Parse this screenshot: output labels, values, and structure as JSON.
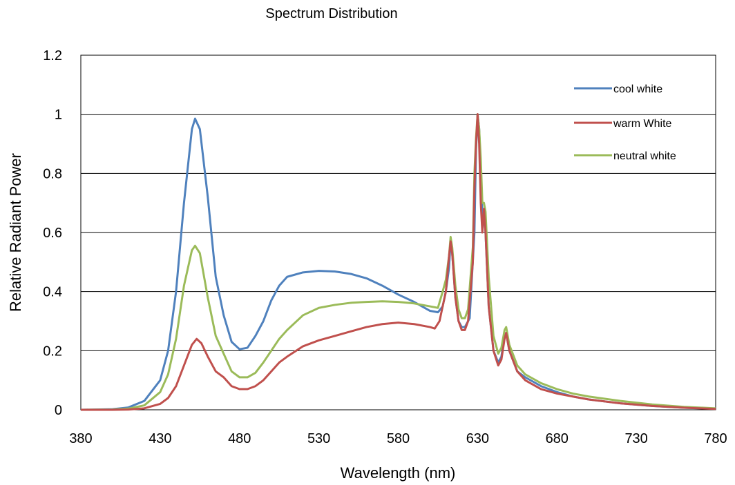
{
  "chart_data": {
    "type": "line",
    "title": "Spectrum Distribution",
    "xlabel": "Wavelength (nm)",
    "ylabel": "Relative Radiant Power",
    "xlim": [
      380,
      780
    ],
    "ylim": [
      0,
      1.2
    ],
    "x_ticks": [
      380,
      430,
      480,
      530,
      580,
      630,
      680,
      730,
      780
    ],
    "y_ticks": [
      0,
      0.2,
      0.4,
      0.6,
      0.8,
      1,
      1.2
    ],
    "x_tick_labels": [
      "380",
      "430",
      "480",
      "530",
      "580",
      "630",
      "680",
      "730",
      "780"
    ],
    "y_tick_labels": [
      "0",
      "0.2",
      "0.4",
      "0.6",
      "0.8",
      "1",
      "1.2"
    ],
    "grid": "horizontal",
    "legend_position": "top-right",
    "series": [
      {
        "name": "cool white",
        "color": "#4f81bd",
        "points": [
          [
            380,
            0
          ],
          [
            400,
            0.002
          ],
          [
            410,
            0.008
          ],
          [
            420,
            0.03
          ],
          [
            430,
            0.1
          ],
          [
            435,
            0.2
          ],
          [
            440,
            0.4
          ],
          [
            445,
            0.7
          ],
          [
            450,
            0.95
          ],
          [
            452,
            0.985
          ],
          [
            455,
            0.95
          ],
          [
            460,
            0.72
          ],
          [
            465,
            0.45
          ],
          [
            470,
            0.32
          ],
          [
            475,
            0.23
          ],
          [
            480,
            0.205
          ],
          [
            485,
            0.21
          ],
          [
            490,
            0.25
          ],
          [
            495,
            0.3
          ],
          [
            500,
            0.37
          ],
          [
            505,
            0.42
          ],
          [
            510,
            0.45
          ],
          [
            520,
            0.465
          ],
          [
            530,
            0.47
          ],
          [
            540,
            0.468
          ],
          [
            550,
            0.46
          ],
          [
            560,
            0.445
          ],
          [
            570,
            0.42
          ],
          [
            580,
            0.39
          ],
          [
            590,
            0.365
          ],
          [
            600,
            0.335
          ],
          [
            605,
            0.33
          ],
          [
            608,
            0.35
          ],
          [
            610,
            0.4
          ],
          [
            612,
            0.48
          ],
          [
            613,
            0.57
          ],
          [
            614,
            0.53
          ],
          [
            616,
            0.38
          ],
          [
            618,
            0.3
          ],
          [
            620,
            0.28
          ],
          [
            622,
            0.28
          ],
          [
            625,
            0.31
          ],
          [
            628,
            0.6
          ],
          [
            629,
            0.88
          ],
          [
            630,
            1.0
          ],
          [
            631,
            0.95
          ],
          [
            632,
            0.8
          ],
          [
            633,
            0.66
          ],
          [
            634,
            0.67
          ],
          [
            635,
            0.6
          ],
          [
            637,
            0.35
          ],
          [
            640,
            0.2
          ],
          [
            643,
            0.16
          ],
          [
            645,
            0.18
          ],
          [
            647,
            0.25
          ],
          [
            648,
            0.26
          ],
          [
            650,
            0.2
          ],
          [
            655,
            0.13
          ],
          [
            660,
            0.11
          ],
          [
            670,
            0.08
          ],
          [
            680,
            0.06
          ],
          [
            690,
            0.045
          ],
          [
            700,
            0.035
          ],
          [
            720,
            0.022
          ],
          [
            740,
            0.013
          ],
          [
            760,
            0.007
          ],
          [
            780,
            0.004
          ]
        ]
      },
      {
        "name": " warm White",
        "color": "#c0504d",
        "points": [
          [
            380,
            0
          ],
          [
            400,
            0
          ],
          [
            410,
            0.001
          ],
          [
            420,
            0.005
          ],
          [
            430,
            0.02
          ],
          [
            435,
            0.04
          ],
          [
            440,
            0.08
          ],
          [
            445,
            0.15
          ],
          [
            450,
            0.22
          ],
          [
            453,
            0.24
          ],
          [
            456,
            0.225
          ],
          [
            460,
            0.18
          ],
          [
            465,
            0.13
          ],
          [
            470,
            0.11
          ],
          [
            475,
            0.08
          ],
          [
            480,
            0.07
          ],
          [
            485,
            0.07
          ],
          [
            490,
            0.08
          ],
          [
            495,
            0.1
          ],
          [
            500,
            0.13
          ],
          [
            505,
            0.16
          ],
          [
            510,
            0.18
          ],
          [
            520,
            0.215
          ],
          [
            530,
            0.235
          ],
          [
            540,
            0.25
          ],
          [
            550,
            0.265
          ],
          [
            560,
            0.28
          ],
          [
            570,
            0.29
          ],
          [
            580,
            0.295
          ],
          [
            590,
            0.29
          ],
          [
            600,
            0.28
          ],
          [
            603,
            0.275
          ],
          [
            606,
            0.3
          ],
          [
            608,
            0.35
          ],
          [
            610,
            0.4
          ],
          [
            612,
            0.52
          ],
          [
            613,
            0.57
          ],
          [
            614,
            0.53
          ],
          [
            616,
            0.38
          ],
          [
            618,
            0.3
          ],
          [
            620,
            0.27
          ],
          [
            622,
            0.27
          ],
          [
            624,
            0.3
          ],
          [
            627,
            0.5
          ],
          [
            628,
            0.75
          ],
          [
            629,
            0.9
          ],
          [
            630,
            1.0
          ],
          [
            631,
            0.9
          ],
          [
            632,
            0.7
          ],
          [
            633,
            0.6
          ],
          [
            634,
            0.68
          ],
          [
            635,
            0.6
          ],
          [
            637,
            0.35
          ],
          [
            640,
            0.2
          ],
          [
            643,
            0.15
          ],
          [
            645,
            0.17
          ],
          [
            647,
            0.24
          ],
          [
            648,
            0.26
          ],
          [
            650,
            0.2
          ],
          [
            655,
            0.13
          ],
          [
            660,
            0.1
          ],
          [
            670,
            0.07
          ],
          [
            680,
            0.055
          ],
          [
            690,
            0.045
          ],
          [
            700,
            0.035
          ],
          [
            720,
            0.022
          ],
          [
            740,
            0.013
          ],
          [
            760,
            0.007
          ],
          [
            780,
            0.003
          ]
        ]
      },
      {
        "name": "neutral white",
        "color": "#9bbb59",
        "points": [
          [
            380,
            0
          ],
          [
            400,
            0.001
          ],
          [
            410,
            0.004
          ],
          [
            420,
            0.015
          ],
          [
            430,
            0.06
          ],
          [
            435,
            0.12
          ],
          [
            440,
            0.24
          ],
          [
            445,
            0.42
          ],
          [
            450,
            0.54
          ],
          [
            452,
            0.555
          ],
          [
            455,
            0.53
          ],
          [
            460,
            0.38
          ],
          [
            465,
            0.25
          ],
          [
            470,
            0.19
          ],
          [
            475,
            0.13
          ],
          [
            480,
            0.11
          ],
          [
            485,
            0.11
          ],
          [
            490,
            0.125
          ],
          [
            495,
            0.16
          ],
          [
            500,
            0.2
          ],
          [
            505,
            0.24
          ],
          [
            510,
            0.27
          ],
          [
            520,
            0.32
          ],
          [
            530,
            0.345
          ],
          [
            540,
            0.355
          ],
          [
            550,
            0.362
          ],
          [
            560,
            0.365
          ],
          [
            570,
            0.367
          ],
          [
            580,
            0.365
          ],
          [
            590,
            0.36
          ],
          [
            600,
            0.35
          ],
          [
            605,
            0.345
          ],
          [
            608,
            0.4
          ],
          [
            610,
            0.44
          ],
          [
            612,
            0.52
          ],
          [
            613,
            0.585
          ],
          [
            614,
            0.55
          ],
          [
            616,
            0.42
          ],
          [
            618,
            0.34
          ],
          [
            620,
            0.31
          ],
          [
            622,
            0.31
          ],
          [
            624,
            0.34
          ],
          [
            627,
            0.55
          ],
          [
            628,
            0.8
          ],
          [
            629,
            0.92
          ],
          [
            630,
            1.0
          ],
          [
            631,
            0.95
          ],
          [
            632,
            0.85
          ],
          [
            633,
            0.7
          ],
          [
            634,
            0.7
          ],
          [
            635,
            0.67
          ],
          [
            637,
            0.45
          ],
          [
            640,
            0.25
          ],
          [
            643,
            0.19
          ],
          [
            645,
            0.21
          ],
          [
            647,
            0.27
          ],
          [
            648,
            0.28
          ],
          [
            650,
            0.22
          ],
          [
            655,
            0.15
          ],
          [
            660,
            0.12
          ],
          [
            670,
            0.09
          ],
          [
            680,
            0.07
          ],
          [
            690,
            0.055
          ],
          [
            700,
            0.045
          ],
          [
            720,
            0.03
          ],
          [
            740,
            0.018
          ],
          [
            760,
            0.01
          ],
          [
            780,
            0.005
          ]
        ]
      }
    ]
  }
}
